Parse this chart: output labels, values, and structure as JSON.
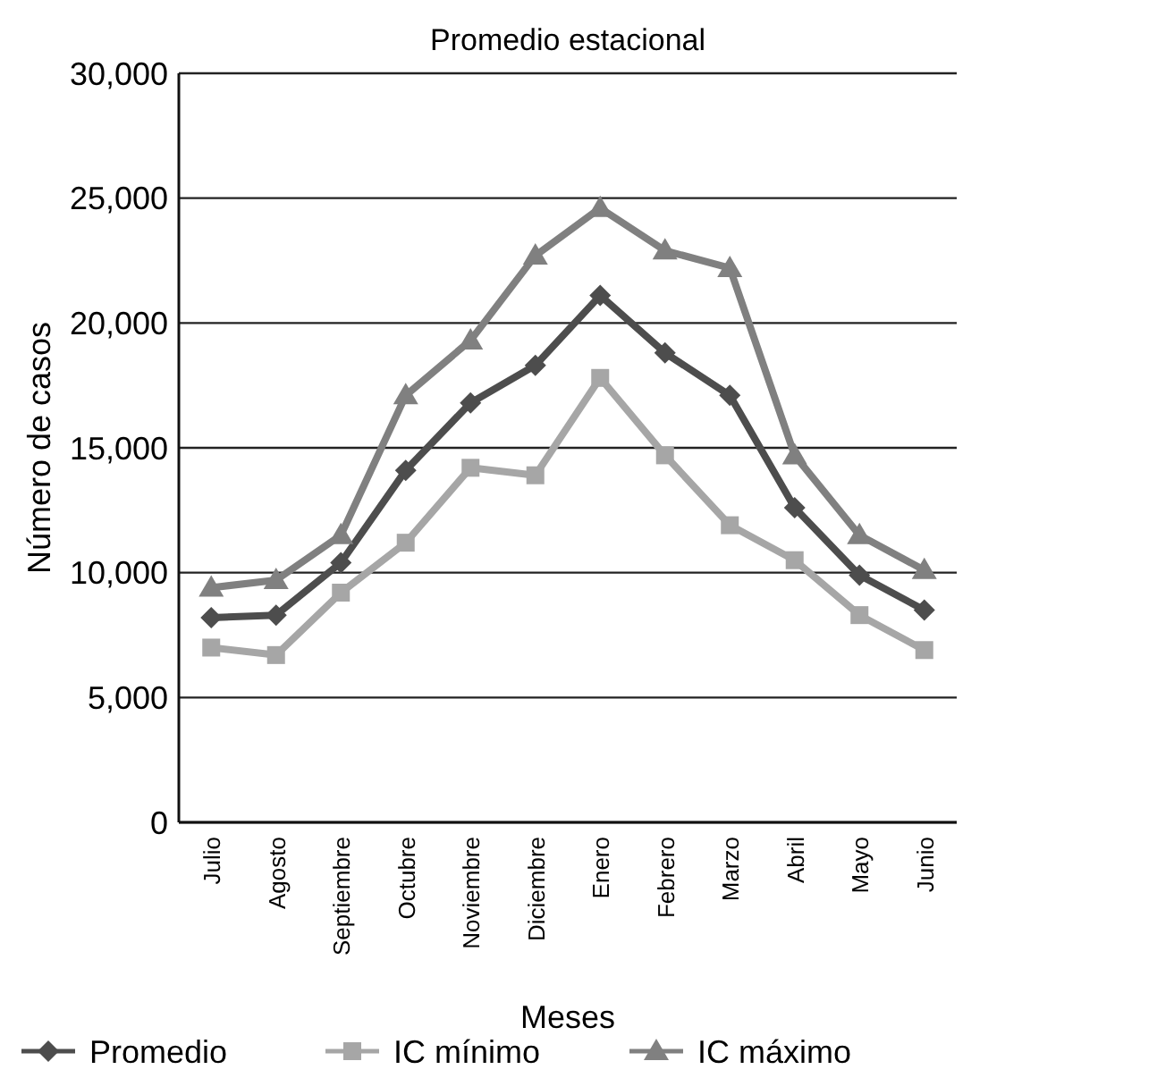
{
  "chart_data": {
    "type": "line",
    "title": "Promedio estacional",
    "xlabel": "Meses",
    "ylabel": "Número de casos",
    "categories": [
      "Julio",
      "Agosto",
      "Septiembre",
      "Octubre",
      "Noviembre",
      "Diciembre",
      "Enero",
      "Febrero",
      "Marzo",
      "Abril",
      "Mayo",
      "Junio"
    ],
    "series": [
      {
        "name": "Promedio",
        "color": "#4d4d4d",
        "marker": "diamond",
        "values": [
          8200,
          8300,
          10400,
          14100,
          16800,
          18300,
          21100,
          18800,
          17100,
          12600,
          9900,
          8500
        ]
      },
      {
        "name": "IC mínimo",
        "color": "#a6a6a6",
        "marker": "square",
        "values": [
          7000,
          6700,
          9200,
          11200,
          14200,
          13900,
          17800,
          14700,
          11900,
          10500,
          8300,
          6900
        ]
      },
      {
        "name": "IC máximo",
        "color": "#808080",
        "marker": "triangle",
        "values": [
          9400,
          9700,
          11500,
          17100,
          19300,
          22700,
          24600,
          22900,
          22200,
          14700,
          11500,
          10100
        ]
      }
    ],
    "ylim": [
      0,
      30000
    ],
    "yticks": [
      {
        "value": 0,
        "label": "0"
      },
      {
        "value": 5000,
        "label": "5,000"
      },
      {
        "value": 10000,
        "label": "10,000"
      },
      {
        "value": 15000,
        "label": "15,000"
      },
      {
        "value": 20000,
        "label": "20,000"
      },
      {
        "value": 25000,
        "label": "25,000"
      },
      {
        "value": 30000,
        "label": "30,000"
      }
    ],
    "grid": "y",
    "legend": "bottom",
    "line_style": "solid"
  }
}
